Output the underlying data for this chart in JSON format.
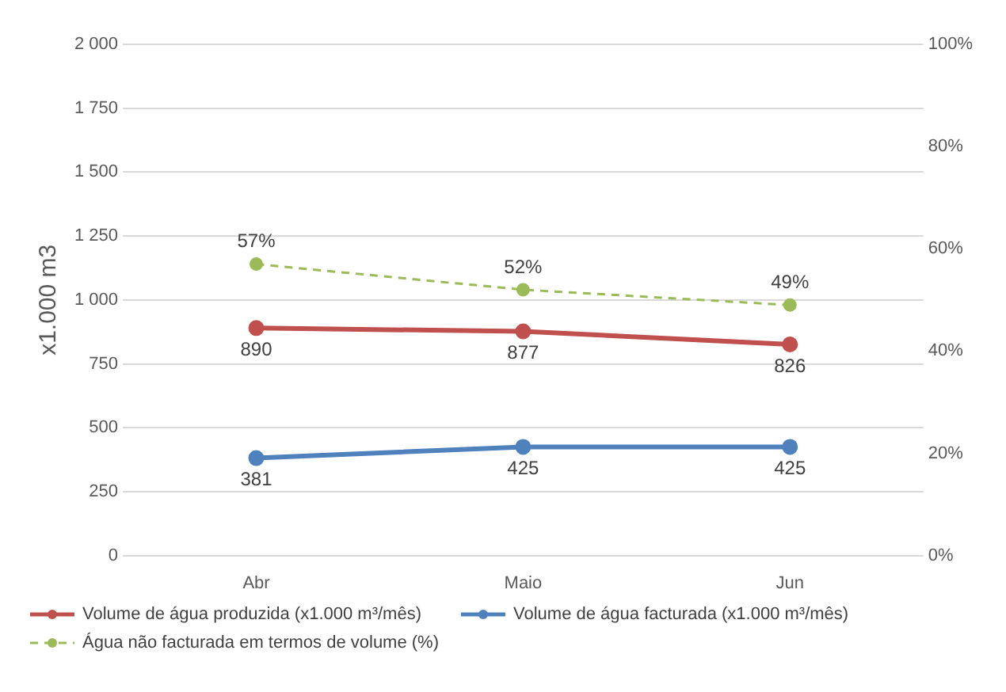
{
  "chart_data": {
    "type": "line",
    "ylabel": "x1.000 m3",
    "categories": [
      "Abr",
      "Maio",
      "Jun"
    ],
    "ylim": [
      0,
      2000
    ],
    "yticks": [
      0,
      250,
      500,
      750,
      {
        "value": 1000,
        "label": "1 000"
      },
      {
        "value": 1250,
        "label": "1 250"
      },
      {
        "value": 1500,
        "label": "1 500"
      },
      {
        "value": 1750,
        "label": "1 750"
      },
      {
        "value": 2000,
        "label": "2 000"
      }
    ],
    "y2lim": [
      0,
      100
    ],
    "y2ticks": [
      {
        "value": 0,
        "label": "0%"
      },
      {
        "value": 20,
        "label": "20%"
      },
      {
        "value": 40,
        "label": "40%"
      },
      {
        "value": 60,
        "label": "60%"
      },
      {
        "value": 80,
        "label": "80%"
      },
      {
        "value": 100,
        "label": "100%"
      }
    ],
    "grid": "y",
    "legend": "bottom",
    "marker": "circle",
    "series": [
      {
        "name": "Volume de água produzida (x1.000 m³/mês)",
        "color": "#c0504d",
        "values": [
          890,
          877,
          826
        ],
        "value_labels": [
          "890",
          "877",
          "826"
        ],
        "line_style": "solid"
      },
      {
        "name": "Volume de água facturada (x1.000 m³/mês)",
        "color": "#4f81bd",
        "values": [
          381,
          425,
          425
        ],
        "value_labels": [
          "381",
          "425",
          "425"
        ],
        "line_style": "solid"
      },
      {
        "name": "Água não facturada em termos de volume (%)",
        "color": "#9bbb59",
        "values": [
          57,
          52,
          49
        ],
        "value_labels": [
          "57%",
          "52%",
          "49%"
        ],
        "axis": "y2",
        "line_style": "dashed"
      }
    ]
  }
}
